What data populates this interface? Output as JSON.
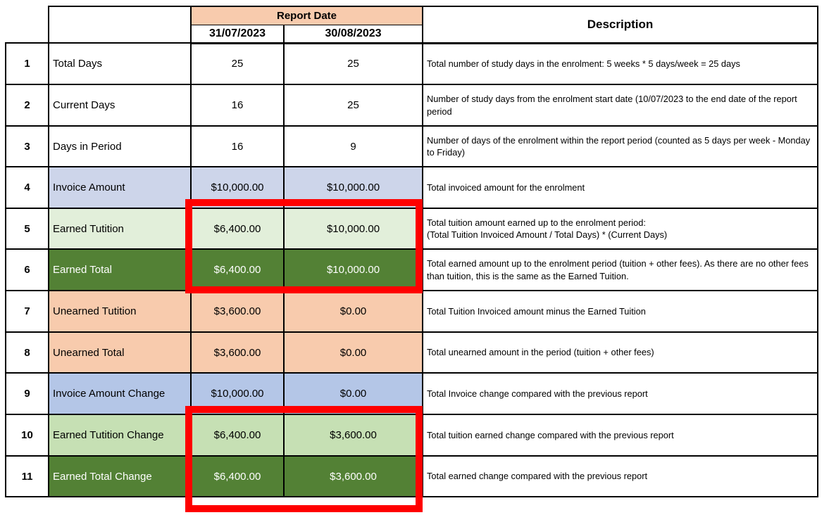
{
  "colors": {
    "header_peach": "#F8CBAD",
    "unearned_peach": "#F8CBAD",
    "invoice_lavender": "#CDD5EA",
    "invoice_change_blue": "#B4C6E7",
    "earned_tuition_green_light": "#E2EFDA",
    "earned_tuition_change_green_mid": "#C6E0B4",
    "earned_total_green_dark": "#538135",
    "highlight_red": "#FF0000",
    "border": "#000000"
  },
  "header": {
    "report_date_label": "Report Date",
    "dates": [
      "31/07/2023",
      "30/08/2023"
    ],
    "description_label": "Description"
  },
  "rows": [
    {
      "num": "1",
      "label": "Total Days",
      "v1": "25",
      "v2": "25",
      "desc": "Total number of study days in the enrolment: 5 weeks * 5 days/week = 25 days",
      "theme": "white"
    },
    {
      "num": "2",
      "label": "Current Days",
      "v1": "16",
      "v2": "25",
      "desc": "Number of study days from the enrolment start date (10/07/2023 to the end date of the report period",
      "theme": "white"
    },
    {
      "num": "3",
      "label": "Days in Period",
      "v1": "16",
      "v2": "9",
      "desc": "Number of days of the enrolment within the report period (counted as 5 days per week - Monday to Friday)",
      "theme": "white"
    },
    {
      "num": "4",
      "label": "Invoice Amount",
      "v1": "$10,000.00",
      "v2": "$10,000.00",
      "desc": "Total invoiced amount for the enrolment",
      "theme": "lavender"
    },
    {
      "num": "5",
      "label": "Earned Tutition",
      "v1": "$6,400.00",
      "v2": "$10,000.00",
      "desc": "Total tuition amount earned up to the enrolment period:\n(Total Tuition Invoiced Amount / Total Days) * (Current Days)",
      "theme": "green-light"
    },
    {
      "num": "6",
      "label": "Earned Total",
      "v1": "$6,400.00",
      "v2": "$10,000.00",
      "desc": "Total earned amount up to the enrolment period (tuition + other fees). As there are no other fees than tuition, this is the same as the Earned Tuition.",
      "theme": "green-dark"
    },
    {
      "num": "7",
      "label": "Unearned Tutition",
      "v1": "$3,600.00",
      "v2": "$0.00",
      "desc": "Total Tuition Invoiced amount minus the Earned Tuition",
      "theme": "peach"
    },
    {
      "num": "8",
      "label": "Unearned Total",
      "v1": "$3,600.00",
      "v2": "$0.00",
      "desc": "Total unearned amount in the period (tuition + other fees)",
      "theme": "peach"
    },
    {
      "num": "9",
      "label": "Invoice Amount Change",
      "v1": "$10,000.00",
      "v2": "$0.00",
      "desc": "Total Invoice change compared with the previous report",
      "theme": "blue"
    },
    {
      "num": "10",
      "label": "Earned Tutition Change",
      "v1": "$6,400.00",
      "v2": "$3,600.00",
      "desc": "Total tuition earned change compared with the previous report",
      "theme": "green-mid"
    },
    {
      "num": "11",
      "label": "Earned Total Change",
      "v1": "$6,400.00",
      "v2": "$3,600.00",
      "desc": "Total earned change compared with the previous report",
      "theme": "green-dark"
    }
  ]
}
